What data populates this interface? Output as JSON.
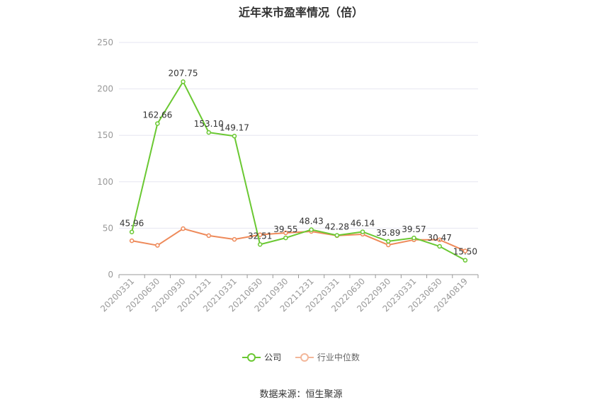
{
  "title": "近年来市盈率情况（倍）",
  "source": "数据来源：恒生聚源",
  "colors": {
    "company": "#6ac832",
    "median": "#ee8a5a",
    "grid": "#e6e6f0",
    "axis": "#999999"
  },
  "chart_data": {
    "type": "line",
    "title": "近年来市盈率情况（倍）",
    "xlabel": "",
    "ylabel": "",
    "ylim": [
      0,
      250
    ],
    "yticks": [
      0,
      50,
      100,
      150,
      200,
      250
    ],
    "grid": true,
    "legend_position": "bottom",
    "categories": [
      "20200331",
      "20200630",
      "20200930",
      "20201231",
      "20210331",
      "20210630",
      "20210930",
      "20211231",
      "20220331",
      "20220630",
      "20220930",
      "20230331",
      "20230630",
      "20240819"
    ],
    "series": [
      {
        "name": "公司",
        "color": "#6ac832",
        "values": [
          45.96,
          162.66,
          207.75,
          153.1,
          149.17,
          32.51,
          39.55,
          48.43,
          42.28,
          46.14,
          35.89,
          39.57,
          30.47,
          15.5
        ],
        "labels": [
          "45.96",
          "162.66",
          "207.75",
          "153.10",
          "149.17",
          "32.51",
          "39.55",
          "48.43",
          "42.28",
          "46.14",
          "35.89",
          "39.57",
          "30.47",
          "15.50"
        ]
      },
      {
        "name": "行业中位数",
        "color": "#ee8a5a",
        "values": [
          36.5,
          31.5,
          49.5,
          42.0,
          38.0,
          43.0,
          45.0,
          46.5,
          42.0,
          43.5,
          32.0,
          37.5,
          37.5,
          25.5
        ]
      }
    ]
  }
}
